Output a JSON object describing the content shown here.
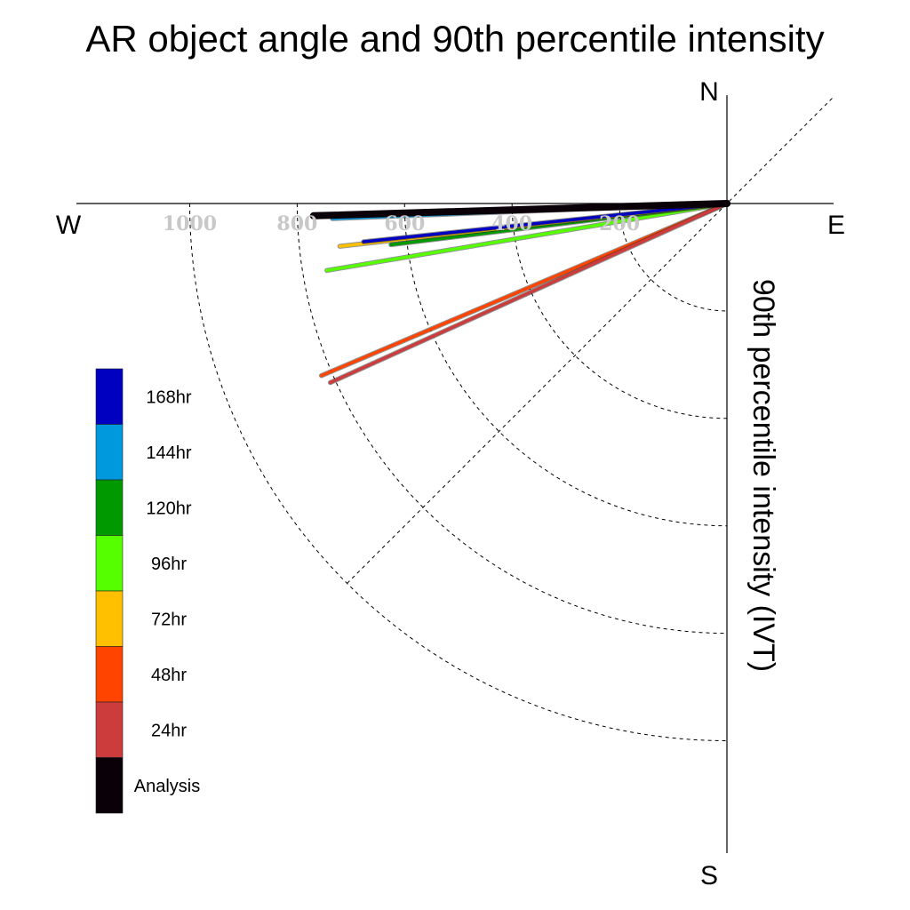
{
  "chart_data": {
    "type": "line",
    "title": "AR object angle and 90th percentile intensity",
    "ylabel": "90th percentile intensity (IVT)",
    "compass": {
      "north": "N",
      "south": "S",
      "east": "E",
      "west": "W"
    },
    "radial_ticks": [
      200,
      400,
      600,
      800,
      1000
    ],
    "radial_tick_labels": [
      "200",
      "400",
      "600",
      "800",
      "1000"
    ],
    "radial_range": [
      0,
      1000
    ],
    "grid": true,
    "legend_position": "left",
    "series": [
      {
        "name": "168hr",
        "color": "#0000c0",
        "intensity": 680,
        "angle_below_west_deg": 6.0
      },
      {
        "name": "144hr",
        "color": "#0099dd",
        "intensity": 735,
        "angle_below_west_deg": 2.2
      },
      {
        "name": "120hr",
        "color": "#009900",
        "intensity": 630,
        "angle_below_west_deg": 7.0
      },
      {
        "name": "96hr",
        "color": "#55ff00",
        "intensity": 755,
        "angle_below_west_deg": 9.5
      },
      {
        "name": "72hr",
        "color": "#ffc000",
        "intensity": 725,
        "angle_below_west_deg": 6.3
      },
      {
        "name": "48hr",
        "color": "#ff4400",
        "intensity": 820,
        "angle_below_west_deg": 23.0
      },
      {
        "name": "24hr",
        "color": "#cc3c3c",
        "intensity": 810,
        "angle_below_west_deg": 24.3
      },
      {
        "name": "Analysis",
        "color": "#0a0008",
        "intensity": 770,
        "angle_below_west_deg": 1.7
      }
    ]
  }
}
